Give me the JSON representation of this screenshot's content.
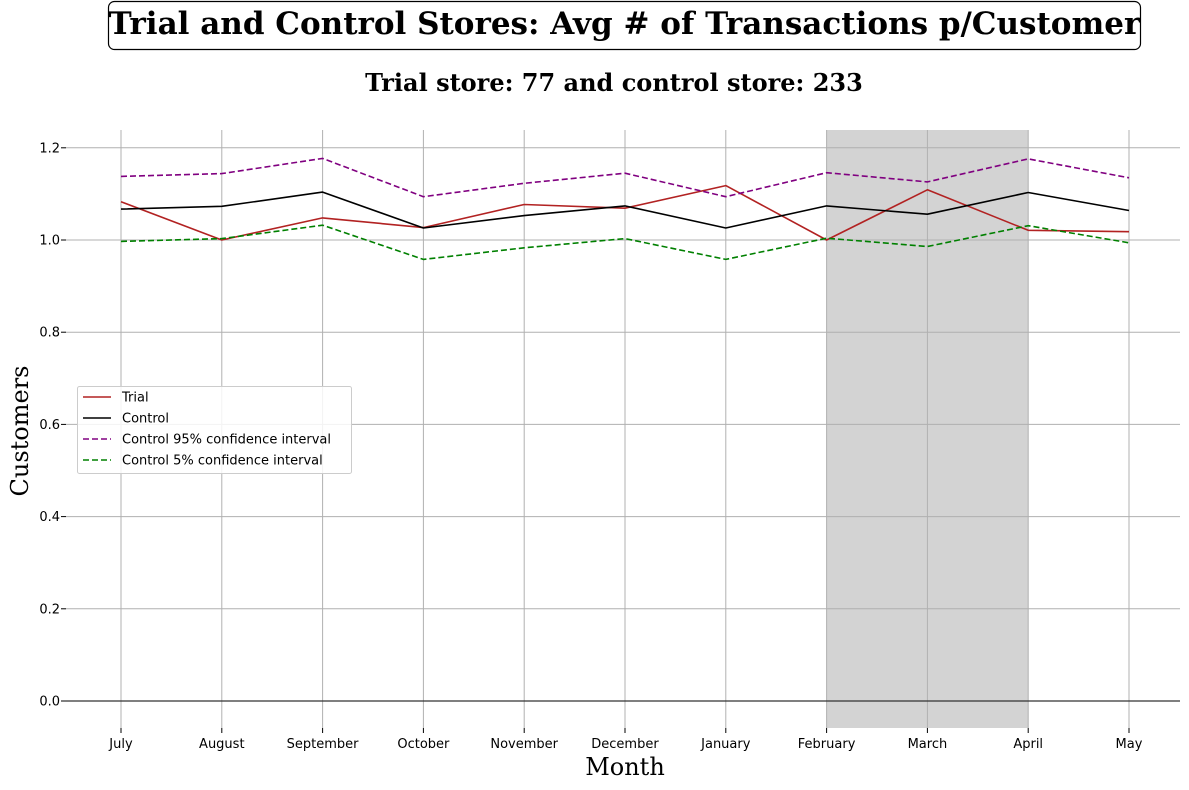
{
  "chart_data": {
    "type": "line",
    "title": "Trial and Control Stores: Avg # of Transactions p/Customer",
    "subtitle": "Trial store: 77 and control store: 233",
    "xlabel": "Month",
    "ylabel": "Customers",
    "categories": [
      "July",
      "August",
      "September",
      "October",
      "November",
      "December",
      "January",
      "February",
      "March",
      "April",
      "May"
    ],
    "ylim": [
      -0.06,
      1.24
    ],
    "yticks": [
      0.0,
      0.2,
      0.4,
      0.6,
      0.8,
      1.0,
      1.2
    ],
    "ytick_labels": [
      "0.0",
      "0.2",
      "0.4",
      "0.6",
      "0.8",
      "1.0",
      "1.2"
    ],
    "grid": true,
    "legend_position": "center-left",
    "highlight_range": [
      "February",
      "April"
    ],
    "highlight_color": "#d3d3d3",
    "series": [
      {
        "name": "Trial",
        "color": "#b22222",
        "dashed": false,
        "values": [
          1.083,
          1.0,
          1.048,
          1.027,
          1.077,
          1.069,
          1.118,
          1.0,
          1.109,
          1.021,
          1.018
        ]
      },
      {
        "name": "Control",
        "color": "#000000",
        "dashed": false,
        "values": [
          1.067,
          1.073,
          1.104,
          1.026,
          1.053,
          1.074,
          1.026,
          1.074,
          1.056,
          1.103,
          1.064
        ]
      },
      {
        "name": "Control 95% confidence interval",
        "color": "#800080",
        "dashed": true,
        "values": [
          1.138,
          1.144,
          1.177,
          1.094,
          1.123,
          1.145,
          1.094,
          1.146,
          1.126,
          1.176,
          1.135
        ]
      },
      {
        "name": "Control 5% confidence interval",
        "color": "#008000",
        "dashed": true,
        "values": [
          0.997,
          1.003,
          1.032,
          0.958,
          0.983,
          1.003,
          0.958,
          1.004,
          0.986,
          1.031,
          0.994
        ]
      }
    ]
  }
}
